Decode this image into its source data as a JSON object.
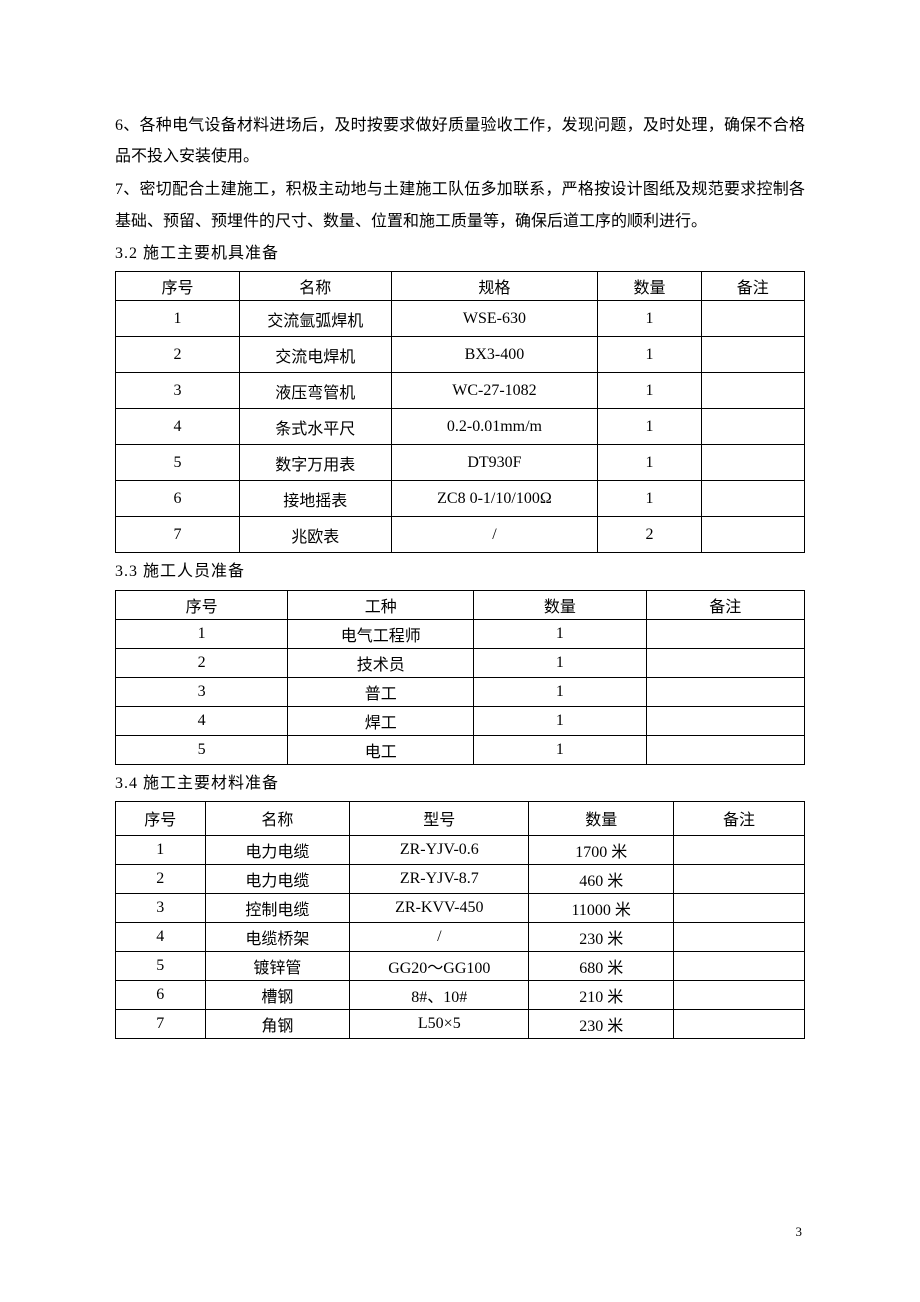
{
  "paragraph6": "6、各种电气设备材料进场后，及时按要求做好质量验收工作，发现问题，及时处理，确保不合格品不投入安装使用。",
  "paragraph7": "7、密切配合土建施工，积极主动地与土建施工队伍多加联系，严格按设计图纸及规范要求控制各基础、预留、预埋件的尺寸、数量、位置和施工质量等，确保后道工序的顺利进行。",
  "section32": "3.2 施工主要机具准备",
  "section33": "3.3 施工人员准备",
  "section34": "3.4 施工主要材料准备",
  "pageNumber": "3",
  "table1": {
    "headers": {
      "c1": "序号",
      "c2": "名称",
      "c3": "规格",
      "c4": "数量",
      "c5": "备注"
    },
    "rows": [
      {
        "c1": "1",
        "c2": "交流氩弧焊机",
        "c3": "WSE-630",
        "c4": "1",
        "c5": ""
      },
      {
        "c1": "2",
        "c2": "交流电焊机",
        "c3": "BX3-400",
        "c4": "1",
        "c5": ""
      },
      {
        "c1": "3",
        "c2": "液压弯管机",
        "c3": "WC-27-1082",
        "c4": "1",
        "c5": ""
      },
      {
        "c1": "4",
        "c2": "条式水平尺",
        "c3": "0.2-0.01mm/m",
        "c4": "1",
        "c5": ""
      },
      {
        "c1": "5",
        "c2": "数字万用表",
        "c3": "DT930F",
        "c4": "1",
        "c5": ""
      },
      {
        "c1": "6",
        "c2": "接地摇表",
        "c3": "ZC8 0-1/10/100Ω",
        "c4": "1",
        "c5": ""
      },
      {
        "c1": "7",
        "c2": "兆欧表",
        "c3": "/",
        "c4": "2",
        "c5": ""
      }
    ]
  },
  "table2": {
    "headers": {
      "c1": "序号",
      "c2": "工种",
      "c3": "数量",
      "c4": "备注"
    },
    "rows": [
      {
        "c1": "1",
        "c2": "电气工程师",
        "c3": "1",
        "c4": ""
      },
      {
        "c1": "2",
        "c2": "技术员",
        "c3": "1",
        "c4": ""
      },
      {
        "c1": "3",
        "c2": "普工",
        "c3": "1",
        "c4": ""
      },
      {
        "c1": "4",
        "c2": "焊工",
        "c3": "1",
        "c4": ""
      },
      {
        "c1": "5",
        "c2": "电工",
        "c3": "1",
        "c4": ""
      }
    ]
  },
  "table3": {
    "headers": {
      "c1": "序号",
      "c2": "名称",
      "c3": "型号",
      "c4": "数量",
      "c5": "备注"
    },
    "rows": [
      {
        "c1": "1",
        "c2": "电力电缆",
        "c3": "ZR-YJV-0.6",
        "c4": "1700 米",
        "c5": ""
      },
      {
        "c1": "2",
        "c2": "电力电缆",
        "c3": "ZR-YJV-8.7",
        "c4": "460 米",
        "c5": ""
      },
      {
        "c1": "3",
        "c2": "控制电缆",
        "c3": "ZR-KVV-450",
        "c4": "11000 米",
        "c5": ""
      },
      {
        "c1": "4",
        "c2": "电缆桥架",
        "c3": "/",
        "c4": "230 米",
        "c5": ""
      },
      {
        "c1": "5",
        "c2": "镀锌管",
        "c3": "GG20～GG100",
        "c4": "680 米",
        "c5": ""
      },
      {
        "c1": "6",
        "c2": "槽钢",
        "c3": "8#、10#",
        "c4": "210 米",
        "c5": ""
      },
      {
        "c1": "7",
        "c2": "角钢",
        "c3": "L50×5",
        "c4": "230 米",
        "c5": ""
      }
    ]
  }
}
